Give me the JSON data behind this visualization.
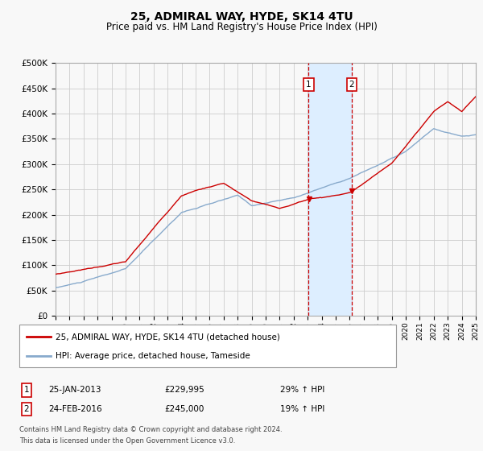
{
  "title": "25, ADMIRAL WAY, HYDE, SK14 4TU",
  "subtitle": "Price paid vs. HM Land Registry's House Price Index (HPI)",
  "legend_line1": "25, ADMIRAL WAY, HYDE, SK14 4TU (detached house)",
  "legend_line2": "HPI: Average price, detached house, Tameside",
  "transaction1_date": "25-JAN-2013",
  "transaction1_price": "£229,995",
  "transaction1_hpi": "29% ↑ HPI",
  "transaction1_year": 2013.07,
  "transaction2_date": "24-FEB-2016",
  "transaction2_price": "£245,000",
  "transaction2_hpi": "19% ↑ HPI",
  "transaction2_year": 2016.15,
  "footnote1": "Contains HM Land Registry data © Crown copyright and database right 2024.",
  "footnote2": "This data is licensed under the Open Government Licence v3.0.",
  "red_line_color": "#cc0000",
  "blue_line_color": "#88aacc",
  "shaded_region_color": "#ddeeff",
  "grid_color": "#cccccc",
  "background_color": "#f8f8f8",
  "ylim_min": 0,
  "ylim_max": 500000,
  "xmin": 1995,
  "xmax": 2025
}
